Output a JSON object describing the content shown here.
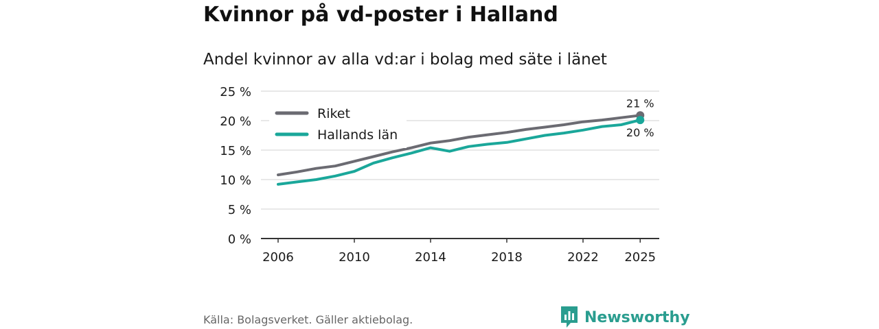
{
  "header": {
    "title": "Kvinnor på vd-poster i Halland",
    "subtitle": "Andel kvinnor av alla vd:ar i bolag med säte i länet"
  },
  "footer": {
    "source": "Källa: Bolagsverket. Gäller aktiebolag.",
    "brand": "Newsworthy",
    "brand_color": "#2a9d8f"
  },
  "chart_data": {
    "type": "line",
    "title": "Kvinnor på vd-poster i Halland",
    "subtitle": "Andel kvinnor av alla vd:ar i bolag med säte i länet",
    "xlabel": "",
    "ylabel": "",
    "x": [
      2006,
      2007,
      2008,
      2009,
      2010,
      2011,
      2012,
      2013,
      2014,
      2015,
      2016,
      2017,
      2018,
      2019,
      2020,
      2021,
      2022,
      2023,
      2024,
      2025
    ],
    "x_ticks": [
      2006,
      2010,
      2014,
      2018,
      2022,
      2025
    ],
    "y_ticks": [
      0,
      5,
      10,
      15,
      20,
      25
    ],
    "y_tick_labels": [
      "0 %",
      "5 %",
      "10 %",
      "15 %",
      "20 %",
      "25 %"
    ],
    "ylim": [
      0,
      25
    ],
    "xlim": [
      2005.1,
      2026.0
    ],
    "grid": true,
    "legend_position": "top-left",
    "series": [
      {
        "name": "Riket",
        "color": "#6b6b72",
        "values": [
          10.8,
          11.3,
          11.9,
          12.3,
          13.1,
          13.9,
          14.7,
          15.4,
          16.2,
          16.6,
          17.2,
          17.6,
          18.0,
          18.5,
          18.9,
          19.3,
          19.8,
          20.1,
          20.5,
          20.9
        ],
        "end_label": "21 %"
      },
      {
        "name": "Hallands län",
        "color": "#1aa79a",
        "values": [
          9.2,
          9.6,
          10.0,
          10.6,
          11.4,
          12.8,
          13.7,
          14.5,
          15.4,
          14.8,
          15.6,
          16.0,
          16.3,
          16.9,
          17.5,
          17.9,
          18.4,
          19.0,
          19.3,
          20.1
        ],
        "end_label": "20 %"
      }
    ]
  }
}
